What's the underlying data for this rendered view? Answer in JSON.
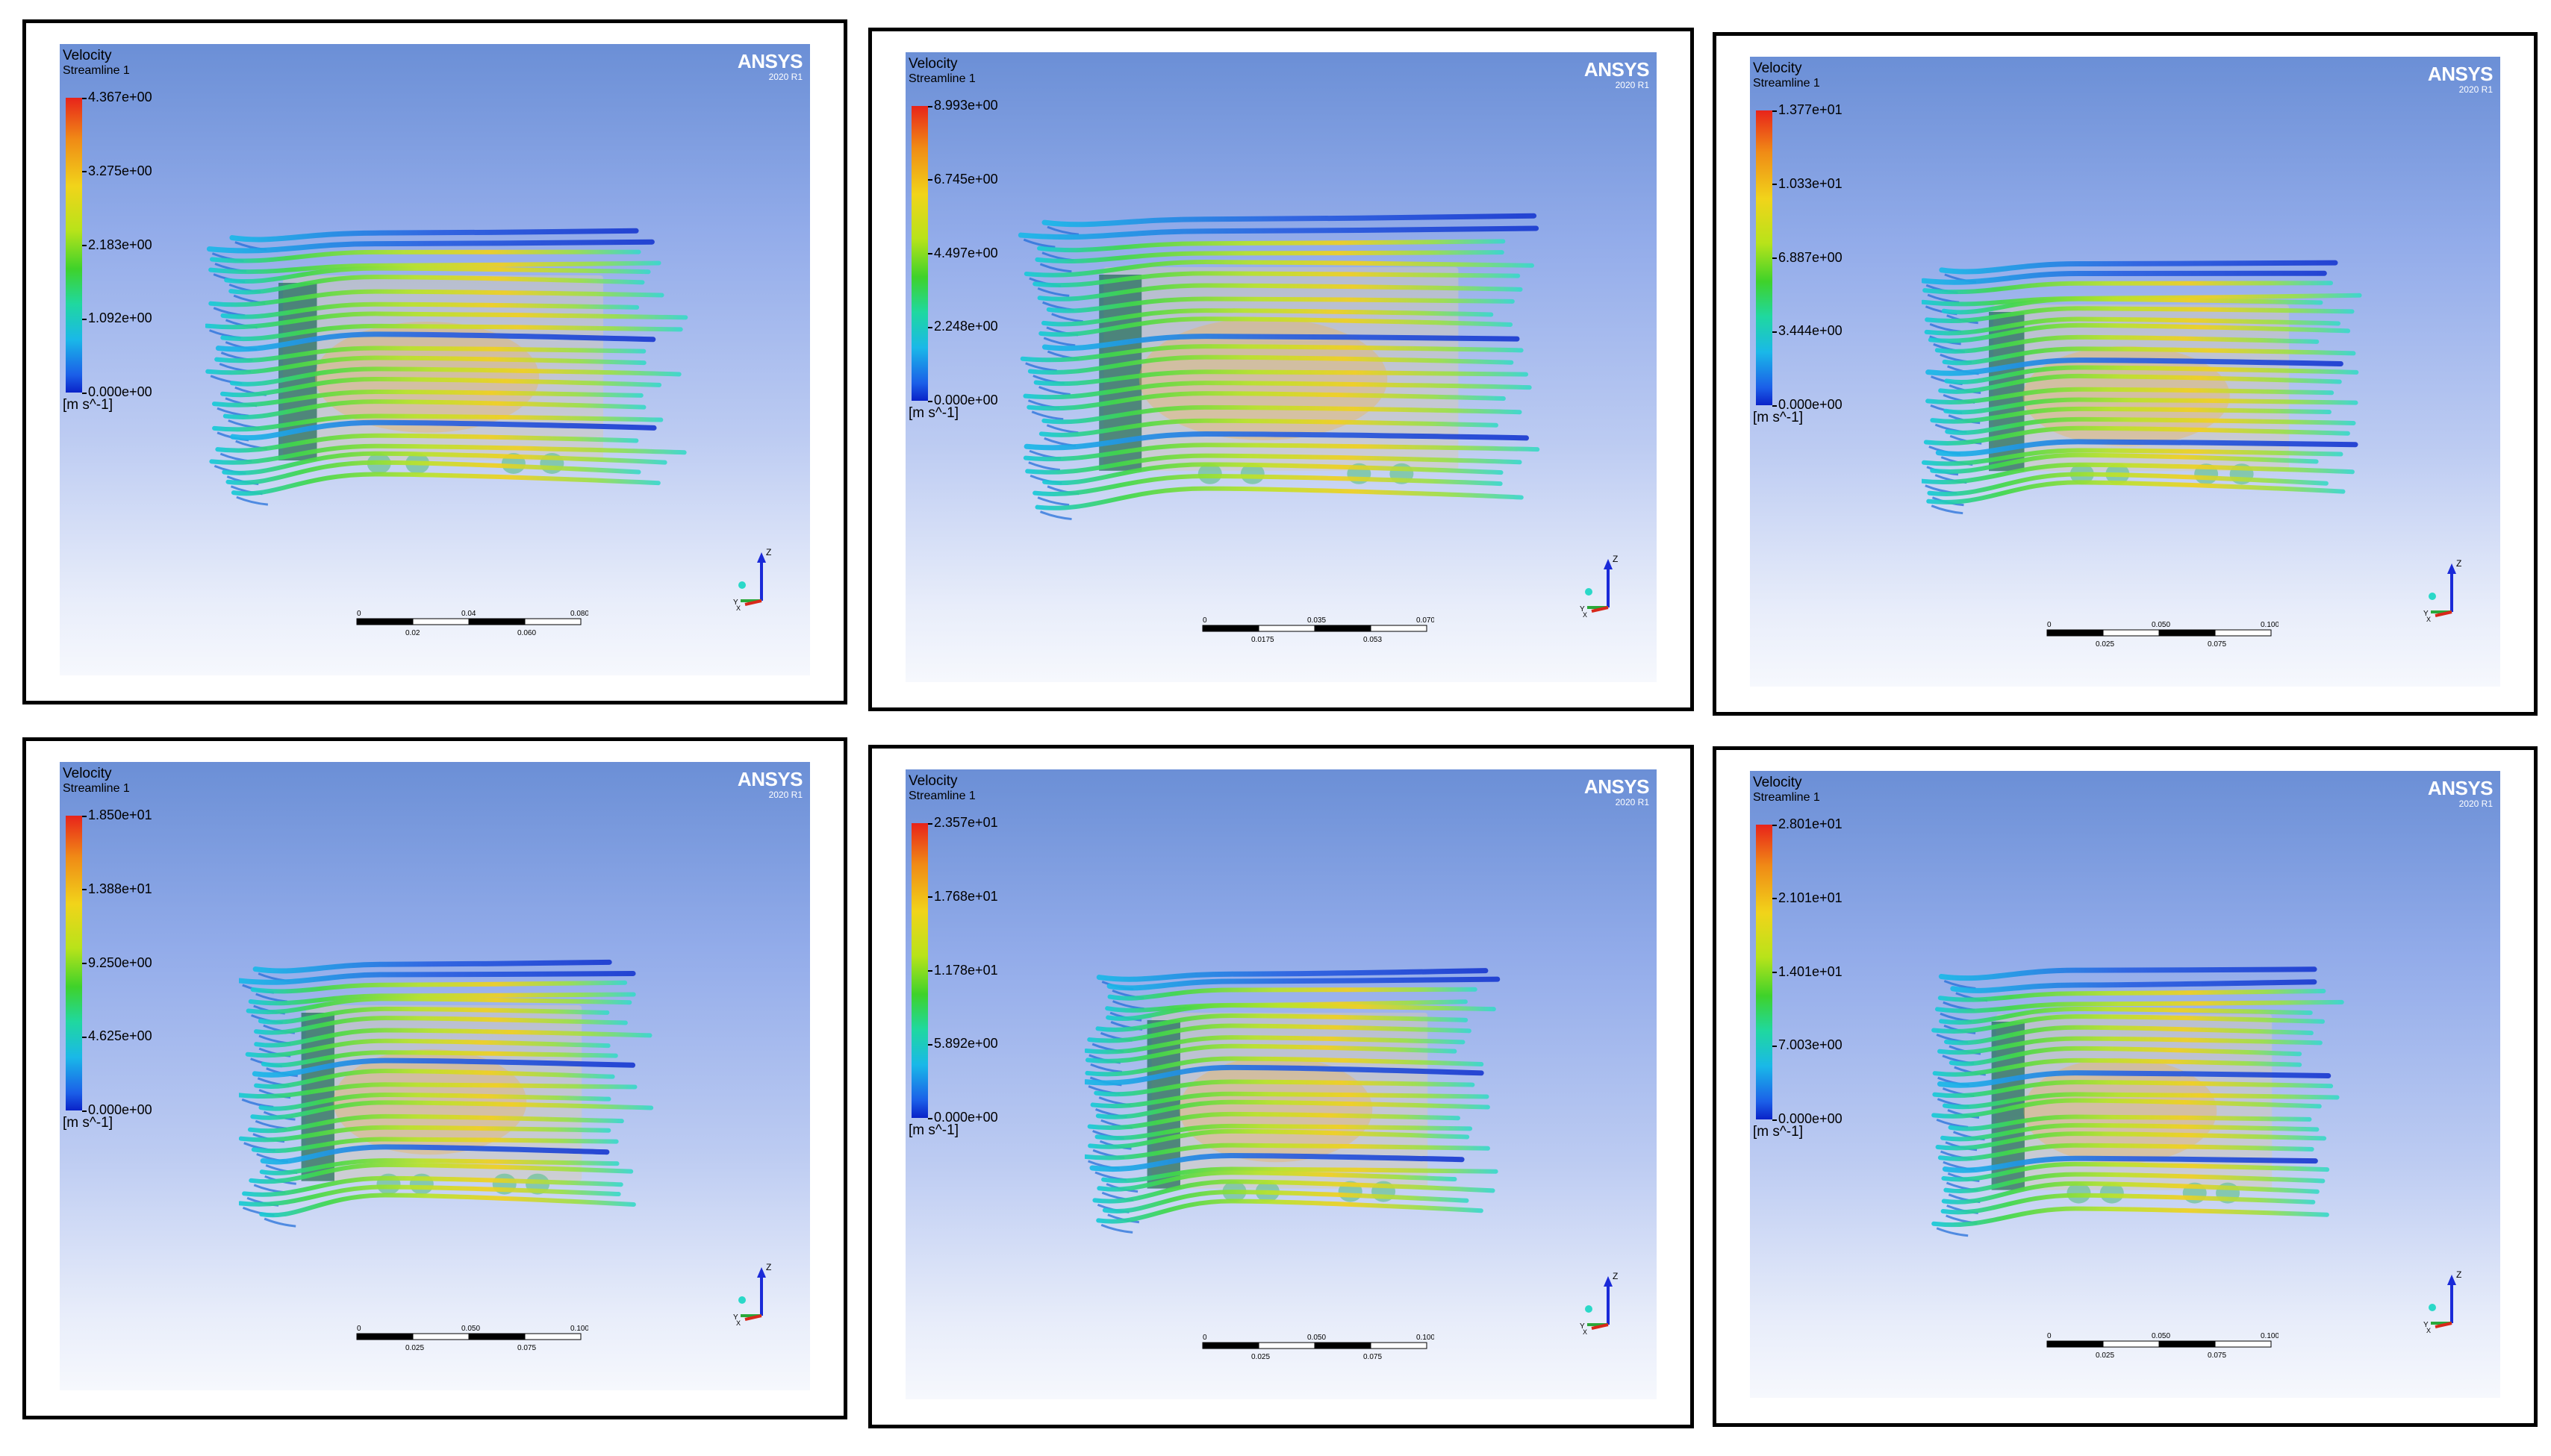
{
  "panels": [
    {
      "title": "Velocity",
      "subtitle": "Streamline 1",
      "ticks": [
        "4.367e+00",
        "3.275e+00",
        "2.183e+00",
        "1.092e+00",
        "0.000e+00"
      ],
      "units": "[m s^-1]",
      "brand": "ANSYS",
      "version": "2020 R1",
      "scale_top": [
        "0",
        "0.04",
        "0.080 (m)"
      ],
      "scale_bottom": [
        "0.02",
        "0.060"
      ]
    },
    {
      "title": "Velocity",
      "subtitle": "Streamline 1",
      "ticks": [
        "8.993e+00",
        "6.745e+00",
        "4.497e+00",
        "2.248e+00",
        "0.000e+00"
      ],
      "units": "[m s^-1]",
      "brand": "ANSYS",
      "version": "2020 R1",
      "scale_top": [
        "0",
        "0.035",
        "0.070 (m)"
      ],
      "scale_bottom": [
        "0.0175",
        "0.053"
      ]
    },
    {
      "title": "Velocity",
      "subtitle": "Streamline 1",
      "ticks": [
        "1.377e+01",
        "1.033e+01",
        "6.887e+00",
        "3.444e+00",
        "0.000e+00"
      ],
      "units": "[m s^-1]",
      "brand": "ANSYS",
      "version": "2020 R1",
      "scale_top": [
        "0",
        "0.050",
        "0.100 (m)"
      ],
      "scale_bottom": [
        "0.025",
        "0.075"
      ]
    },
    {
      "title": "Velocity",
      "subtitle": "Streamline 1",
      "ticks": [
        "1.850e+01",
        "1.388e+01",
        "9.250e+00",
        "4.625e+00",
        "0.000e+00"
      ],
      "units": "[m s^-1]",
      "brand": "ANSYS",
      "version": "2020 R1",
      "scale_top": [
        "0",
        "0.050",
        "0.100 (m)"
      ],
      "scale_bottom": [
        "0.025",
        "0.075"
      ]
    },
    {
      "title": "Velocity",
      "subtitle": "Streamline 1",
      "ticks": [
        "2.357e+01",
        "1.768e+01",
        "1.178e+01",
        "5.892e+00",
        "0.000e+00"
      ],
      "units": "[m s^-1]",
      "brand": "ANSYS",
      "version": "2020 R1",
      "scale_top": [
        "0",
        "0.050",
        "0.100 (m)"
      ],
      "scale_bottom": [
        "0.025",
        "0.075"
      ]
    },
    {
      "title": "Velocity",
      "subtitle": "Streamline 1",
      "ticks": [
        "2.801e+01",
        "2.101e+01",
        "1.401e+01",
        "7.003e+00",
        "0.000e+00"
      ],
      "units": "[m s^-1]",
      "brand": "ANSYS",
      "version": "2020 R1",
      "scale_top": [
        "0",
        "0.050",
        "0.100 (m)"
      ],
      "scale_bottom": [
        "0.025",
        "0.075"
      ]
    }
  ],
  "axis_labels": {
    "z": "Z",
    "y": "Y",
    "x": "X"
  }
}
